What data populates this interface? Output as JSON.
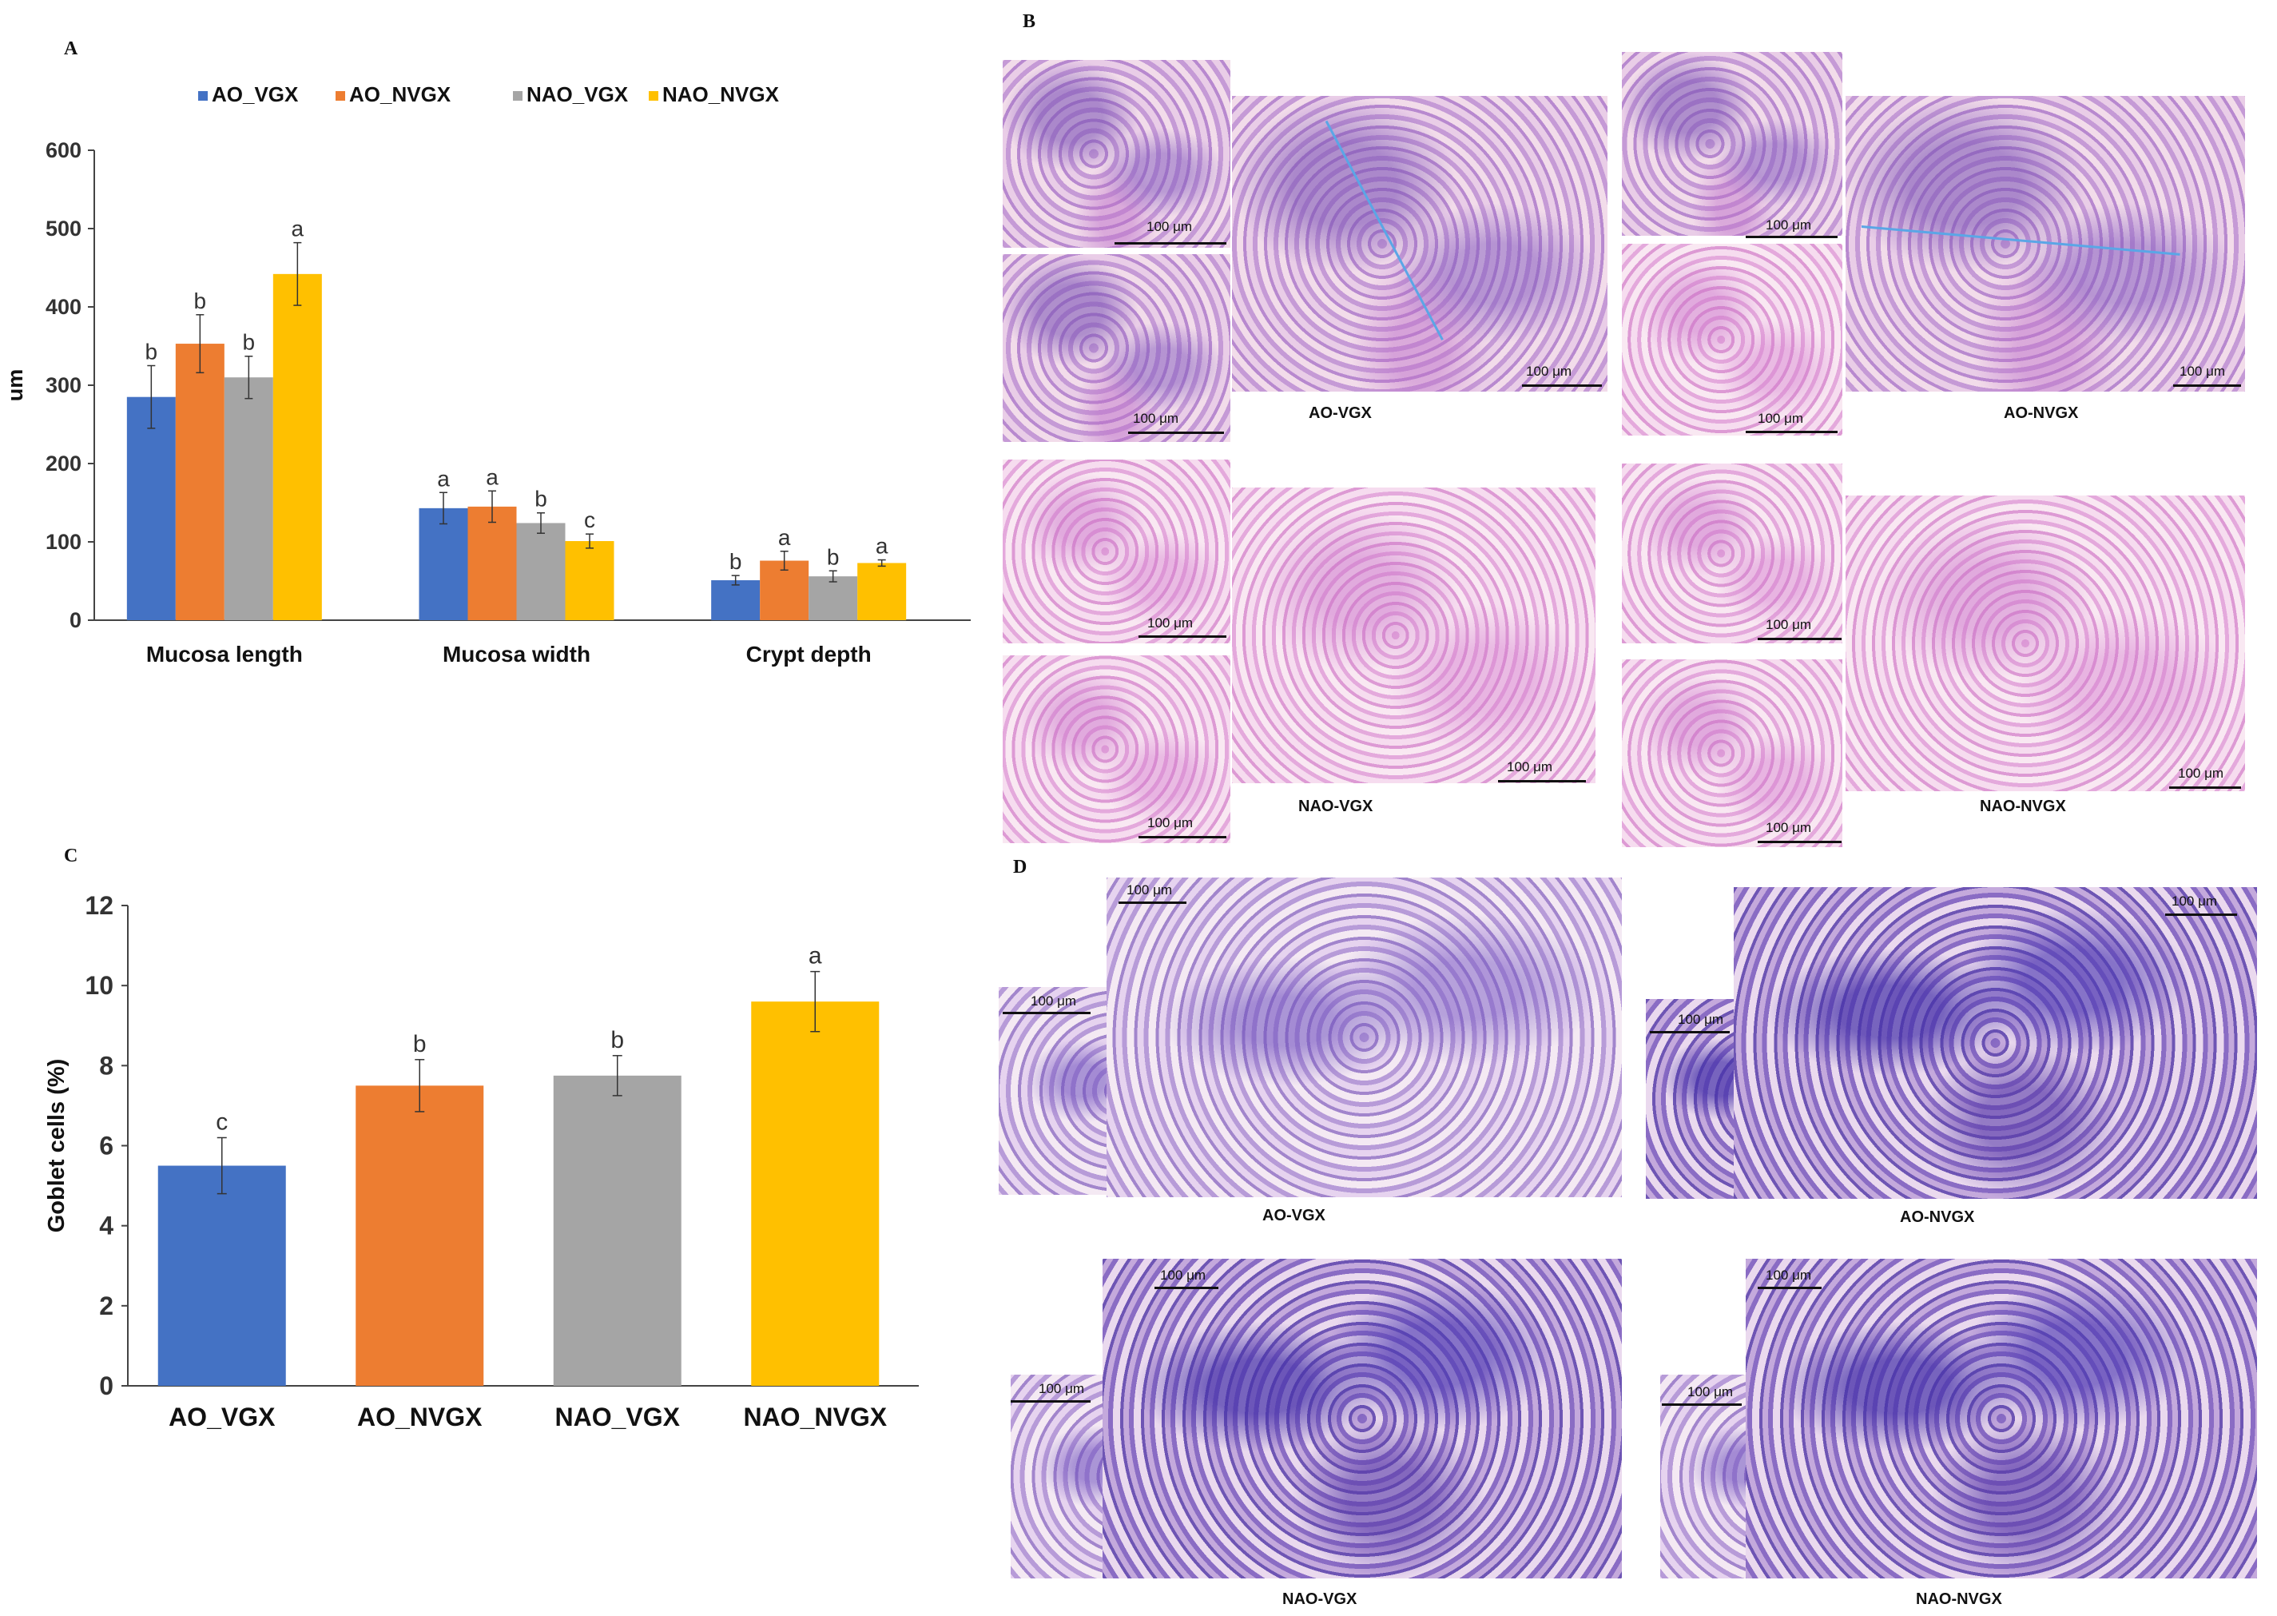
{
  "panels": {
    "a": "A",
    "b": "B",
    "c": "C",
    "d": "D"
  },
  "colors": {
    "AO_VGX": "#4472C4",
    "AO_NVGX": "#ED7D31",
    "NAO_VGX": "#A5A5A5",
    "NAO_NVGX": "#FFC000"
  },
  "chart_data": [
    {
      "type": "bar",
      "ylabel": "um",
      "ylim": [
        0,
        600
      ],
      "yticks": [
        0,
        100,
        200,
        300,
        400,
        500,
        600
      ],
      "legend_position": "top",
      "categories": [
        "Mucosa length",
        "Mucosa width",
        "Crypt depth"
      ],
      "series": [
        {
          "name": "AO_VGX",
          "values": [
            285,
            143,
            51
          ],
          "errors": [
            40,
            20,
            6
          ],
          "letters": [
            "b",
            "a",
            "b"
          ]
        },
        {
          "name": "AO_NVGX",
          "values": [
            353,
            145,
            76
          ],
          "errors": [
            37,
            20,
            12
          ],
          "letters": [
            "b",
            "a",
            "a"
          ]
        },
        {
          "name": "NAO_VGX",
          "values": [
            310,
            124,
            56
          ],
          "errors": [
            27,
            13,
            7
          ],
          "letters": [
            "b",
            "b",
            "b"
          ]
        },
        {
          "name": "NAO_NVGX",
          "values": [
            442,
            101,
            73
          ],
          "errors": [
            40,
            9,
            4
          ],
          "letters": [
            "a",
            "c",
            "a"
          ]
        }
      ]
    },
    {
      "type": "bar",
      "ylabel": "Goblet cells (%)",
      "ylim": [
        0,
        12
      ],
      "yticks": [
        0,
        2,
        4,
        6,
        8,
        10,
        12
      ],
      "categories": [
        "AO_VGX",
        "AO_NVGX",
        "NAO_VGX",
        "NAO_NVGX"
      ],
      "values": [
        5.5,
        7.5,
        7.75,
        9.6
      ],
      "errors": [
        0.7,
        0.65,
        0.5,
        0.75
      ],
      "letters": [
        "c",
        "b",
        "b",
        "a"
      ]
    }
  ],
  "panel_b": {
    "scale": "100 μm",
    "labels": [
      "AO-VGX",
      "AO-NVGX",
      "NAO-VGX",
      "NAO-NVGX"
    ]
  },
  "panel_d": {
    "scale": "100 μm",
    "labels": [
      "AO-VGX",
      "AO-NVGX",
      "NAO-VGX",
      "NAO-NVGX"
    ]
  }
}
